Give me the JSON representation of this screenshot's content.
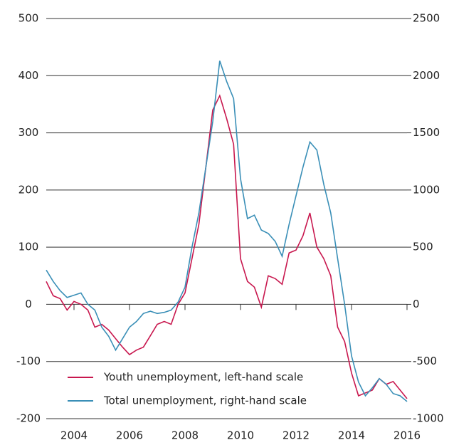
{
  "chart_data": {
    "type": "line",
    "x": [
      2003.0,
      2003.25,
      2003.5,
      2003.75,
      2004.0,
      2004.25,
      2004.5,
      2004.75,
      2005.0,
      2005.25,
      2005.5,
      2005.75,
      2006.0,
      2006.25,
      2006.5,
      2006.75,
      2007.0,
      2007.25,
      2007.5,
      2007.75,
      2008.0,
      2008.25,
      2008.5,
      2008.75,
      2009.0,
      2009.25,
      2009.5,
      2009.75,
      2010.0,
      2010.25,
      2010.5,
      2010.75,
      2011.0,
      2011.25,
      2011.5,
      2011.75,
      2012.0,
      2012.25,
      2012.5,
      2012.75,
      2013.0,
      2013.25,
      2013.5,
      2013.75,
      2014.0,
      2014.25,
      2014.5,
      2014.75,
      2015.0,
      2015.25,
      2015.5,
      2015.75,
      2016.0
    ],
    "series": [
      {
        "name": "Youth unemployment, left-hand scale",
        "color": "#c8174e",
        "axis": "y",
        "values": [
          40,
          15,
          10,
          -10,
          5,
          0,
          -10,
          -40,
          -35,
          -45,
          -60,
          -75,
          -88,
          -80,
          -75,
          -55,
          -35,
          -30,
          -35,
          0,
          20,
          80,
          140,
          240,
          340,
          365,
          325,
          280,
          80,
          40,
          30,
          -5,
          50,
          45,
          35,
          90,
          95,
          120,
          160,
          100,
          80,
          50,
          -40,
          -65,
          -120,
          -160,
          -155,
          -150,
          -130,
          -140,
          -135,
          -150,
          -165
        ]
      },
      {
        "name": "Total unemployment, right-hand scale",
        "color": "#3a8fb7",
        "axis": "y2",
        "values": [
          300,
          200,
          120,
          60,
          80,
          100,
          0,
          -50,
          -200,
          -280,
          -400,
          -300,
          -200,
          -150,
          -80,
          -60,
          -80,
          -70,
          -50,
          20,
          150,
          500,
          800,
          1200,
          1600,
          2130,
          1950,
          1800,
          1100,
          750,
          780,
          650,
          620,
          550,
          420,
          700,
          950,
          1200,
          1420,
          1350,
          1050,
          800,
          400,
          0,
          -450,
          -680,
          -800,
          -730,
          -650,
          -700,
          -780,
          -800,
          -850
        ]
      }
    ],
    "xlim": [
      2003,
      2016
    ],
    "xticks": [
      2004,
      2006,
      2008,
      2010,
      2012,
      2014,
      2016
    ],
    "ylim": [
      -200,
      500
    ],
    "yticks": [
      -200,
      -100,
      0,
      100,
      200,
      300,
      400,
      500
    ],
    "y2lim": [
      -1000,
      2500
    ],
    "y2ticks": [
      -1000,
      -500,
      0,
      500,
      1000,
      1500,
      2000,
      2500
    ],
    "grid": true
  }
}
